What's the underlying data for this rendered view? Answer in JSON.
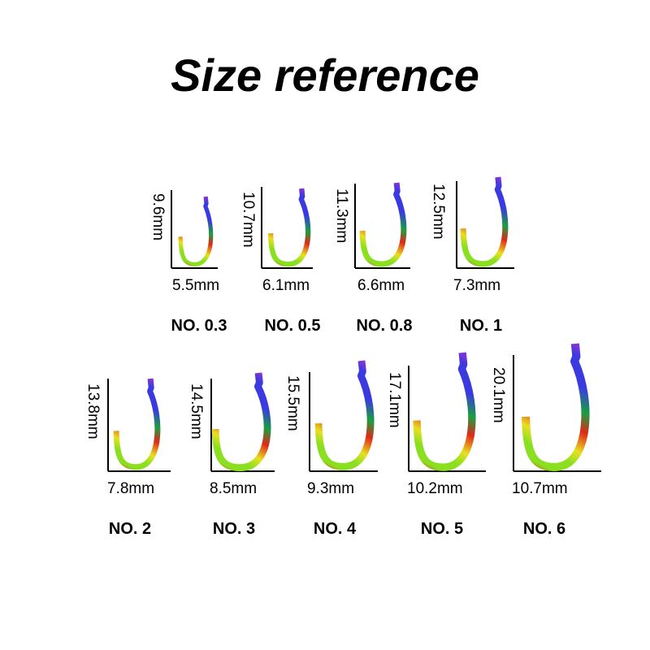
{
  "title": "Size reference",
  "colors": {
    "tip": "#b030d0",
    "blue": "#3a3ae0",
    "green": "#18a040",
    "lime": "#8ae020",
    "yellow": "#e8e020",
    "red": "#e02818",
    "axis": "#000000"
  },
  "hooks": [
    {
      "no": "NO. 0.3",
      "height": "9.6mm",
      "width": "5.5mm"
    },
    {
      "no": "NO. 0.5",
      "height": "10.7mm",
      "width": "6.1mm"
    },
    {
      "no": "NO. 0.8",
      "height": "11.3mm",
      "width": "6.6mm"
    },
    {
      "no": "NO. 1",
      "height": "12.5mm",
      "width": "7.3mm"
    },
    {
      "no": "NO. 2",
      "height": "13.8mm",
      "width": "7.8mm"
    },
    {
      "no": "NO. 3",
      "height": "14.5mm",
      "width": "8.5mm"
    },
    {
      "no": "NO. 4",
      "height": "15.5mm",
      "width": "9.3mm"
    },
    {
      "no": "NO. 5",
      "height": "17.1mm",
      "width": "10.2mm"
    },
    {
      "no": "NO. 6",
      "height": "20.1mm",
      "width": "10.7mm"
    }
  ]
}
